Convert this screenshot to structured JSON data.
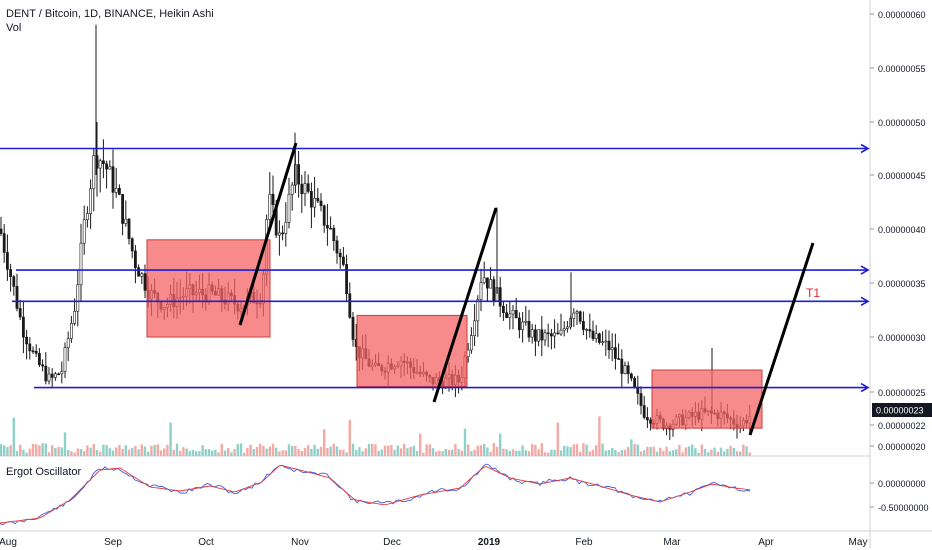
{
  "header": {
    "title": "DENT / Bitcoin, 1D, BINANCE, Heikin Ashi",
    "volume_label": "Vol"
  },
  "oscillator": {
    "label": "Ergot Oscillator"
  },
  "colors": {
    "up": "#4a4a4a",
    "down": "#1a1a1a",
    "vol_up": "#8fd0c8",
    "vol_down": "#f4a9a5",
    "trendline": "#1d1fd0",
    "box_fill": "#f46464",
    "box_stroke": "#d23b3b",
    "target": "#e0262c",
    "osc_red": "#e23b3b",
    "osc_blue": "#3b5ce0",
    "price_tag": "#131722"
  },
  "chart_data": [
    {
      "type": "candlestick",
      "title": "DENT / Bitcoin, 1D, BINANCE, Heikin Ashi",
      "x_ticks": [
        "Aug",
        "Sep",
        "Oct",
        "Nov",
        "Dec",
        "2019",
        "Feb",
        "Mar",
        "Apr",
        "May"
      ],
      "y_ticks": [
        "0.00000060",
        "0.00000055",
        "0.00000050",
        "0.00000045",
        "0.00000040",
        "0.00000035",
        "0.00000030",
        "0.00000025",
        "0.00000022",
        "0.00000020"
      ],
      "ylim": [
        2e-07,
        6e-07
      ],
      "last_price": "0.00000023",
      "annotations": [
        {
          "type": "horizontal",
          "label": "",
          "price": 4.75e-07
        },
        {
          "type": "horizontal",
          "label": "",
          "price": 3.62e-07
        },
        {
          "type": "horizontal",
          "label": "",
          "price": 3.33e-07
        },
        {
          "type": "horizontal",
          "label": "",
          "price": 2.54e-07
        },
        {
          "type": "target",
          "label": "T1"
        }
      ],
      "zones": [
        {
          "from": "Sep 12",
          "to": "Oct 22",
          "high": 3.9e-07,
          "low": 3e-07
        },
        {
          "from": "Nov 21",
          "to": "Dec 26",
          "high": 3.2e-07,
          "low": 2.55e-07
        },
        {
          "from": "Feb 22",
          "to": "Mar 28",
          "high": 2.7e-07,
          "low": 2.17e-07
        }
      ]
    },
    {
      "type": "line",
      "title": "Ergot Oscillator",
      "y_ticks": [
        "0.00000000",
        "-0.50000000"
      ],
      "series": [
        {
          "values": []
        },
        {
          "values": []
        }
      ]
    }
  ]
}
